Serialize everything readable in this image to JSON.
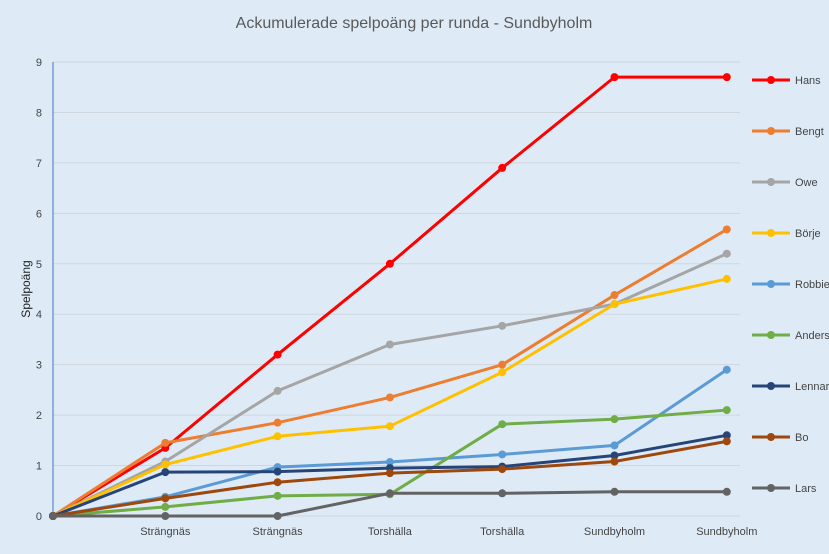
{
  "chart_data": {
    "type": "line",
    "title": "Ackumulerade spelpoäng per runda - Sundbyholm",
    "xlabel": "",
    "ylabel": "Spelpoäng",
    "ylim": [
      0,
      9
    ],
    "yticks": [
      0,
      1,
      2,
      3,
      4,
      5,
      6,
      7,
      8,
      9
    ],
    "grid": true,
    "legend": "right",
    "categories": [
      "",
      "Strängnäs",
      "Strängnäs",
      "Torshälla",
      "Torshälla",
      "Sundbyholm",
      "Sundbyholm"
    ],
    "series": [
      {
        "name": "Hans",
        "color": "#ff0000",
        "values": [
          0,
          1.35,
          3.2,
          5.0,
          6.9,
          8.7,
          8.7
        ]
      },
      {
        "name": "Bengt",
        "color": "#ed7d31",
        "values": [
          0,
          1.45,
          1.85,
          2.35,
          3.0,
          4.38,
          5.68
        ]
      },
      {
        "name": "Owe",
        "color": "#a5a5a5",
        "values": [
          0,
          1.08,
          2.48,
          3.4,
          3.77,
          4.2,
          5.2
        ]
      },
      {
        "name": "Börje",
        "color": "#ffc000",
        "values": [
          0,
          1.02,
          1.58,
          1.78,
          2.85,
          4.2,
          4.7
        ]
      },
      {
        "name": "Robbie",
        "color": "#5b9bd5",
        "values": [
          0,
          0.38,
          0.97,
          1.07,
          1.22,
          1.4,
          2.9
        ]
      },
      {
        "name": "Anders",
        "color": "#70ad47",
        "values": [
          0,
          0.18,
          0.4,
          0.43,
          1.82,
          1.92,
          2.1
        ]
      },
      {
        "name": "Lennart",
        "color": "#264478",
        "values": [
          0,
          0.87,
          0.88,
          0.95,
          0.98,
          1.2,
          1.6
        ]
      },
      {
        "name": "Bo",
        "color": "#9e480e",
        "values": [
          0,
          0.35,
          0.67,
          0.85,
          0.93,
          1.08,
          1.48
        ]
      },
      {
        "name": "Lars",
        "color": "#636363",
        "values": [
          0,
          0,
          0,
          0.45,
          0.45,
          0.48,
          0.48
        ]
      }
    ]
  }
}
